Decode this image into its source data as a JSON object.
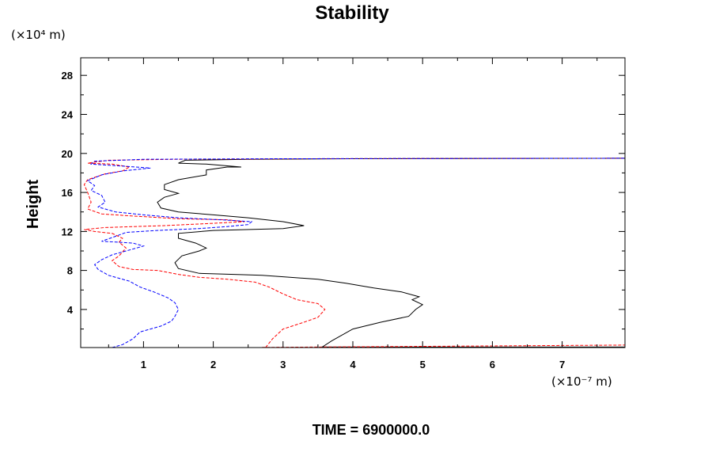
{
  "chart_data": {
    "type": "line",
    "title": "Stability",
    "ylabel": "Height",
    "xlabel": "",
    "y_unit": "(×10⁴ m)",
    "x_unit": "(×10⁻⁷ m)",
    "footer": "TIME = 6900000.0",
    "xlim": [
      0.1,
      7.9
    ],
    "ylim": [
      0.1,
      29.8
    ],
    "x_ticks": [
      "1",
      "2",
      "3",
      "4",
      "5",
      "6",
      "7"
    ],
    "y_ticks": [
      "4",
      "8",
      "12",
      "16",
      "20",
      "24",
      "28"
    ],
    "colors": {
      "black": "#000000",
      "red": "#ff0000",
      "blue": "#0000ff"
    },
    "series": [
      {
        "name": "solid-black",
        "color": "#000000",
        "style": "solid",
        "points": [
          [
            3.55,
            0.1
          ],
          [
            3.7,
            0.8
          ],
          [
            4.0,
            2.0
          ],
          [
            4.4,
            2.7
          ],
          [
            4.8,
            3.3
          ],
          [
            4.9,
            4.0
          ],
          [
            5.0,
            4.5
          ],
          [
            4.85,
            5.0
          ],
          [
            4.95,
            5.3
          ],
          [
            4.7,
            5.8
          ],
          [
            4.3,
            6.2
          ],
          [
            3.9,
            6.7
          ],
          [
            3.5,
            7.1
          ],
          [
            3.1,
            7.3
          ],
          [
            2.7,
            7.5
          ],
          [
            2.3,
            7.6
          ],
          [
            1.8,
            7.7
          ],
          [
            1.5,
            8.2
          ],
          [
            1.45,
            8.8
          ],
          [
            1.55,
            9.5
          ],
          [
            1.8,
            10.0
          ],
          [
            1.9,
            10.3
          ],
          [
            1.75,
            10.8
          ],
          [
            1.5,
            11.3
          ],
          [
            1.5,
            11.8
          ],
          [
            2.0,
            12.1
          ],
          [
            3.0,
            12.3
          ],
          [
            3.3,
            12.6
          ],
          [
            3.0,
            13.0
          ],
          [
            2.5,
            13.4
          ],
          [
            2.0,
            13.7
          ],
          [
            1.5,
            14.0
          ],
          [
            1.25,
            14.4
          ],
          [
            1.2,
            15.0
          ],
          [
            1.3,
            15.5
          ],
          [
            1.5,
            15.9
          ],
          [
            1.3,
            16.3
          ],
          [
            1.3,
            16.8
          ],
          [
            1.5,
            17.3
          ],
          [
            1.9,
            17.8
          ],
          [
            1.9,
            18.3
          ],
          [
            2.2,
            18.6
          ],
          [
            2.4,
            18.6
          ],
          [
            1.9,
            18.9
          ],
          [
            1.5,
            19.0
          ],
          [
            1.6,
            19.3
          ],
          [
            2.5,
            19.4
          ],
          [
            4.0,
            19.45
          ],
          [
            7.9,
            19.5
          ]
        ]
      },
      {
        "name": "dashed-red",
        "color": "#ff0000",
        "style": "dashed",
        "points": [
          [
            2.75,
            0.1
          ],
          [
            2.85,
            1.0
          ],
          [
            3.0,
            2.0
          ],
          [
            3.3,
            2.7
          ],
          [
            3.5,
            3.2
          ],
          [
            3.6,
            4.0
          ],
          [
            3.5,
            4.6
          ],
          [
            3.2,
            5.0
          ],
          [
            3.0,
            5.6
          ],
          [
            2.8,
            6.3
          ],
          [
            2.6,
            6.8
          ],
          [
            2.2,
            7.1
          ],
          [
            1.8,
            7.3
          ],
          [
            1.5,
            7.6
          ],
          [
            1.2,
            8.0
          ],
          [
            0.85,
            8.1
          ],
          [
            0.65,
            8.4
          ],
          [
            0.55,
            9.0
          ],
          [
            0.65,
            9.5
          ],
          [
            0.75,
            10.3
          ],
          [
            0.65,
            10.9
          ],
          [
            0.7,
            11.3
          ],
          [
            0.55,
            11.8
          ],
          [
            0.3,
            12.0
          ],
          [
            0.15,
            12.2
          ],
          [
            0.45,
            12.4
          ],
          [
            1.3,
            12.6
          ],
          [
            1.9,
            12.8
          ],
          [
            2.45,
            13.0
          ],
          [
            2.2,
            13.2
          ],
          [
            1.5,
            13.3
          ],
          [
            0.8,
            13.6
          ],
          [
            0.4,
            13.8
          ],
          [
            0.2,
            14.3
          ],
          [
            0.25,
            15.0
          ],
          [
            0.2,
            16.0
          ],
          [
            0.15,
            16.8
          ],
          [
            0.2,
            17.3
          ],
          [
            0.45,
            17.9
          ],
          [
            0.7,
            18.2
          ],
          [
            0.8,
            18.6
          ],
          [
            0.55,
            18.9
          ],
          [
            0.2,
            19.0
          ],
          [
            0.5,
            19.3
          ],
          [
            1.5,
            19.4
          ],
          [
            3.5,
            19.45
          ],
          [
            7.9,
            19.5
          ]
        ]
      },
      {
        "name": "dashed-blue",
        "color": "#0000ff",
        "style": "dashed",
        "points": [
          [
            0.55,
            0.1
          ],
          [
            0.7,
            0.4
          ],
          [
            0.85,
            1.0
          ],
          [
            0.95,
            1.7
          ],
          [
            1.25,
            2.3
          ],
          [
            1.4,
            2.8
          ],
          [
            1.45,
            3.3
          ],
          [
            1.5,
            4.0
          ],
          [
            1.45,
            4.7
          ],
          [
            1.35,
            5.2
          ],
          [
            1.15,
            5.8
          ],
          [
            0.95,
            6.3
          ],
          [
            0.8,
            6.9
          ],
          [
            0.5,
            7.5
          ],
          [
            0.35,
            8.1
          ],
          [
            0.3,
            8.6
          ],
          [
            0.4,
            9.1
          ],
          [
            0.55,
            9.6
          ],
          [
            0.75,
            10.0
          ],
          [
            1.0,
            10.5
          ],
          [
            0.85,
            10.8
          ],
          [
            0.4,
            11.0
          ],
          [
            0.6,
            11.5
          ],
          [
            0.75,
            11.9
          ],
          [
            1.2,
            12.1
          ],
          [
            1.8,
            12.3
          ],
          [
            2.2,
            12.5
          ],
          [
            2.5,
            12.7
          ],
          [
            2.55,
            13.0
          ],
          [
            2.1,
            13.2
          ],
          [
            1.5,
            13.4
          ],
          [
            1.0,
            13.7
          ],
          [
            0.6,
            14.0
          ],
          [
            0.35,
            14.5
          ],
          [
            0.45,
            15.0
          ],
          [
            0.4,
            15.7
          ],
          [
            0.25,
            16.2
          ],
          [
            0.3,
            16.7
          ],
          [
            0.2,
            17.2
          ],
          [
            0.4,
            17.8
          ],
          [
            0.7,
            18.2
          ],
          [
            1.1,
            18.5
          ],
          [
            0.7,
            18.7
          ],
          [
            0.25,
            18.9
          ],
          [
            0.3,
            19.2
          ],
          [
            1.0,
            19.4
          ],
          [
            3.0,
            19.45
          ],
          [
            7.9,
            19.5
          ]
        ]
      },
      {
        "name": "base-black",
        "color": "#000000",
        "style": "solid",
        "points": [
          [
            3.55,
            0.15
          ],
          [
            7.9,
            0.15
          ]
        ]
      },
      {
        "name": "base-red",
        "color": "#ff0000",
        "style": "dashed",
        "points": [
          [
            2.7,
            0.12
          ],
          [
            7.9,
            0.35
          ]
        ]
      },
      {
        "name": "base-blue",
        "color": "#0000ff",
        "style": "dashed",
        "points": [
          [
            0.45,
            0.1
          ],
          [
            0.2,
            0.1
          ]
        ]
      }
    ]
  }
}
